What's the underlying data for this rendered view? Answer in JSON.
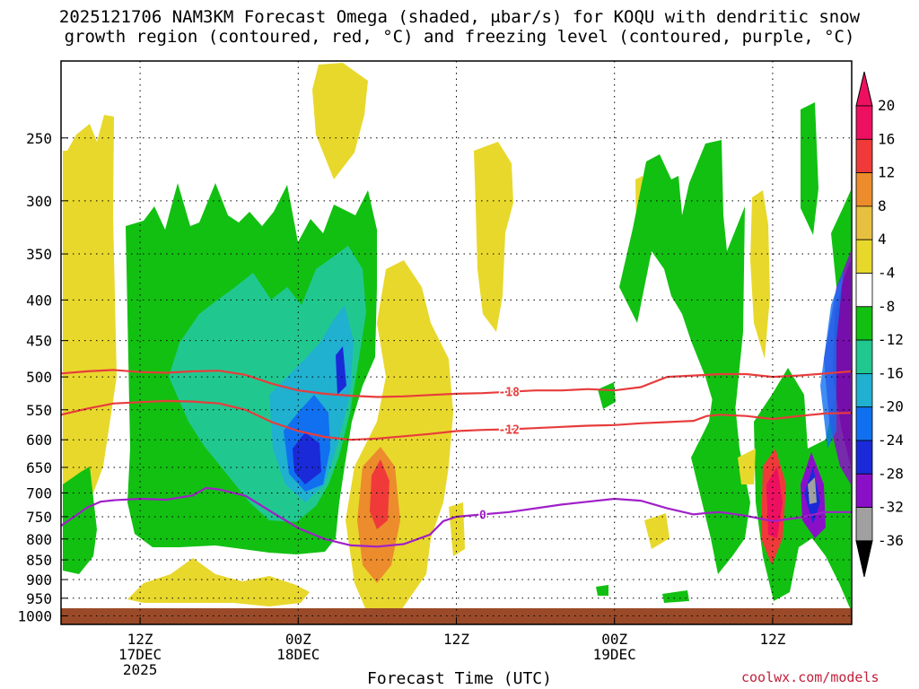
{
  "title": {
    "line1": "2025121706 NAM3KM Forecast Omega (shaded, μbar/s) for KOQU with dendritic snow",
    "line2": "growth region (contoured, red, °C) and freezing level (contoured, purple, °C)"
  },
  "xlabel": "Forecast Time (UTC)",
  "credit": "coolwx.com/models",
  "chart_data": {
    "type": "heatmap",
    "y_axis": {
      "label": "",
      "scale": "log-pressure",
      "range": [
        1025,
        200
      ],
      "tick_labels": [
        "250",
        "300",
        "350",
        "400",
        "450",
        "500",
        "550",
        "600",
        "650",
        "700",
        "750",
        "800",
        "850",
        "900",
        "950",
        "1000"
      ]
    },
    "x_axis": {
      "range_hours": [
        0,
        60
      ],
      "ticks": [
        {
          "hour": 6,
          "labels": [
            "12Z",
            "17DEC",
            "2025"
          ]
        },
        {
          "hour": 18,
          "labels": [
            "00Z",
            "18DEC"
          ]
        },
        {
          "hour": 30,
          "labels": [
            "12Z"
          ]
        },
        {
          "hour": 42,
          "labels": [
            "00Z",
            "19DEC"
          ]
        },
        {
          "hour": 54,
          "labels": [
            "12Z"
          ]
        }
      ]
    },
    "colorbar": {
      "labels": [
        "20",
        "16",
        "12",
        "8",
        "4",
        "-4",
        "-8",
        "-12",
        "-16",
        "-20",
        "-24",
        "-28",
        "-32",
        "-36"
      ],
      "colors": [
        "#ee1060",
        "#f03a3a",
        "#ec8c2c",
        "#e8c040",
        "#e8d82c",
        "#ffffff",
        "#12c012",
        "#20c890",
        "#20b0d0",
        "#1070f0",
        "#1a2ad8",
        "#8a10c8",
        "#a0a0a0",
        "#000000"
      ]
    },
    "contours": [
      {
        "label": "-18",
        "color": "#e83c3c",
        "points": [
          [
            0,
            495
          ],
          [
            2,
            492
          ],
          [
            4,
            490
          ],
          [
            6,
            493
          ],
          [
            8,
            494
          ],
          [
            10,
            492
          ],
          [
            12,
            491
          ],
          [
            14,
            497
          ],
          [
            16,
            510
          ],
          [
            18,
            520
          ],
          [
            20,
            525
          ],
          [
            22,
            528
          ],
          [
            24,
            530
          ],
          [
            26,
            529
          ],
          [
            28,
            527
          ],
          [
            30,
            525
          ],
          [
            32,
            524
          ],
          [
            34,
            522
          ],
          [
            36,
            520
          ],
          [
            38,
            520
          ],
          [
            40,
            518
          ],
          [
            42,
            520
          ],
          [
            44,
            515
          ],
          [
            46,
            500
          ],
          [
            48,
            498
          ],
          [
            50,
            496
          ],
          [
            52,
            496
          ],
          [
            54,
            500
          ],
          [
            56,
            498
          ],
          [
            58,
            495
          ],
          [
            60,
            492
          ]
        ]
      },
      {
        "label": "-12",
        "color": "#e83c3c",
        "points": [
          [
            0,
            558
          ],
          [
            2,
            548
          ],
          [
            4,
            540
          ],
          [
            6,
            538
          ],
          [
            8,
            536
          ],
          [
            10,
            537
          ],
          [
            12,
            540
          ],
          [
            14,
            550
          ],
          [
            16,
            570
          ],
          [
            18,
            585
          ],
          [
            20,
            595
          ],
          [
            22,
            600
          ],
          [
            24,
            598
          ],
          [
            26,
            594
          ],
          [
            28,
            590
          ],
          [
            30,
            585
          ],
          [
            32,
            583
          ],
          [
            34,
            582
          ],
          [
            36,
            580
          ],
          [
            38,
            578
          ],
          [
            40,
            576
          ],
          [
            42,
            575
          ],
          [
            44,
            572
          ],
          [
            46,
            570
          ],
          [
            48,
            568
          ],
          [
            49,
            560
          ],
          [
            50,
            558
          ],
          [
            52,
            560
          ],
          [
            54,
            565
          ],
          [
            56,
            560
          ],
          [
            58,
            556
          ],
          [
            60,
            555
          ]
        ]
      },
      {
        "label": "0",
        "color": "#a020c8",
        "points": [
          [
            0,
            770
          ],
          [
            2,
            730
          ],
          [
            3,
            718
          ],
          [
            4,
            715
          ],
          [
            6,
            712
          ],
          [
            8,
            714
          ],
          [
            10,
            705
          ],
          [
            11,
            690
          ],
          [
            12,
            693
          ],
          [
            14,
            706
          ],
          [
            16,
            740
          ],
          [
            18,
            775
          ],
          [
            20,
            800
          ],
          [
            22,
            815
          ],
          [
            24,
            818
          ],
          [
            26,
            812
          ],
          [
            28,
            790
          ],
          [
            29,
            760
          ],
          [
            30,
            750
          ],
          [
            32,
            745
          ],
          [
            34,
            740
          ],
          [
            36,
            732
          ],
          [
            38,
            724
          ],
          [
            40,
            718
          ],
          [
            42,
            712
          ],
          [
            44,
            716
          ],
          [
            46,
            732
          ],
          [
            48,
            745
          ],
          [
            49,
            742
          ],
          [
            50,
            740
          ],
          [
            52,
            748
          ],
          [
            54,
            760
          ],
          [
            56,
            752
          ],
          [
            58,
            740
          ],
          [
            60,
            740
          ]
        ]
      }
    ],
    "pressure_levels": [
      250,
      300,
      350,
      400,
      450,
      500,
      550,
      600,
      650,
      700,
      750,
      800,
      850,
      900,
      950,
      1000
    ]
  }
}
